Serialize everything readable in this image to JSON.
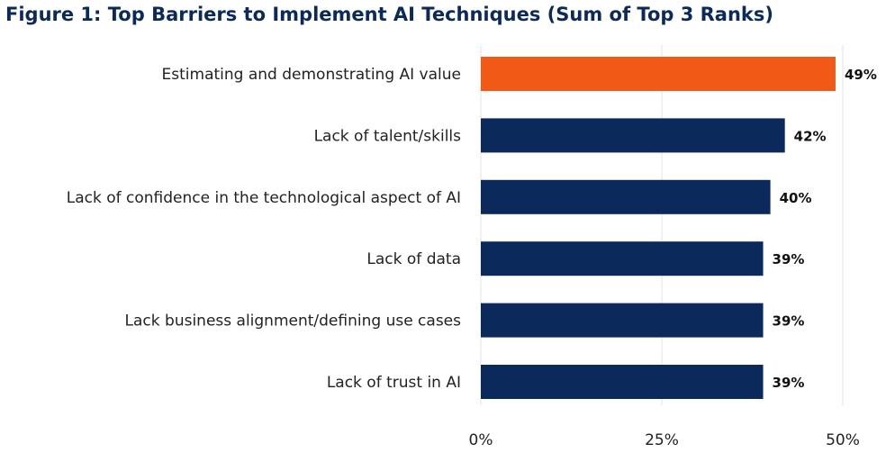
{
  "chart_data": {
    "type": "bar",
    "orientation": "horizontal",
    "title": "Figure 1: Top Barriers to Implement AI Techniques (Sum of Top 3 Ranks)",
    "categories": [
      "Estimating and demonstrating AI value",
      "Lack of talent/skills",
      "Lack of confidence in the technological aspect of AI",
      "Lack of data",
      "Lack business alignment/defining use cases",
      "Lack of trust in AI"
    ],
    "values": [
      49,
      42,
      40,
      39,
      39,
      39
    ],
    "value_labels": [
      "49%",
      "42%",
      "40%",
      "39%",
      "39%",
      "39%"
    ],
    "bar_colors": [
      "#f05a16",
      "#0b2a5b",
      "#0b2a5b",
      "#0b2a5b",
      "#0b2a5b",
      "#0b2a5b"
    ],
    "xlim": [
      0,
      50
    ],
    "xticks": [
      0,
      25,
      50
    ],
    "xtick_labels": [
      "0%",
      "25%",
      "50%"
    ],
    "xlabel": "",
    "ylabel": "",
    "grid": "vertical",
    "legend": "none"
  }
}
